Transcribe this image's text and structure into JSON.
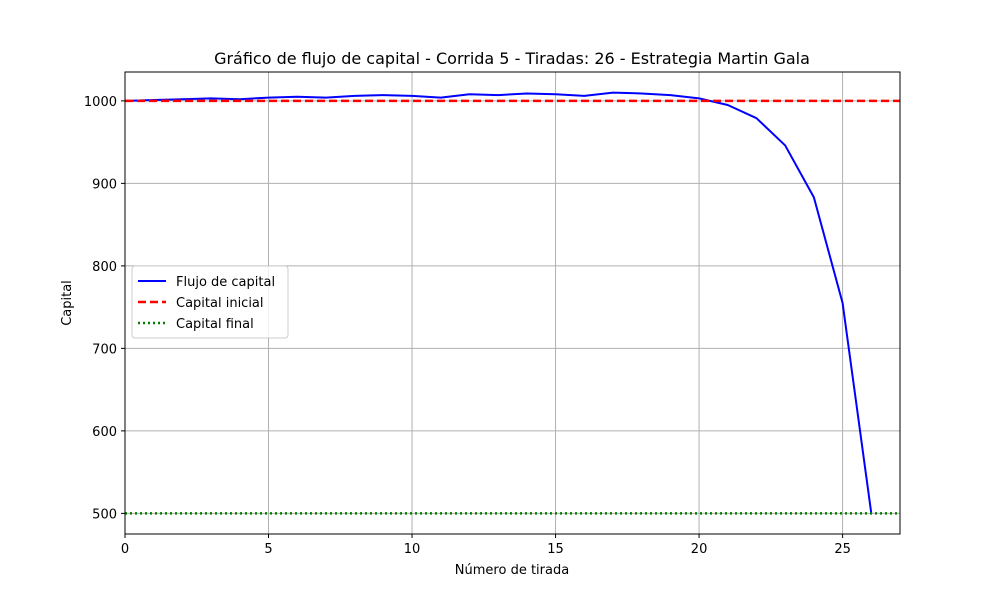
{
  "chart_data": {
    "type": "line",
    "title": "Gráfico de flujo de capital - Corrida 5 - Tiradas: 26 - Estrategia Martin Gala",
    "xlabel": "Número de tirada",
    "ylabel": "Capital",
    "xlim": [
      0,
      27
    ],
    "ylim": [
      475,
      1035
    ],
    "xticks": [
      0,
      5,
      10,
      15,
      20,
      25
    ],
    "yticks": [
      500,
      600,
      700,
      800,
      900,
      1000
    ],
    "grid": true,
    "legend_position": "center-left",
    "series": [
      {
        "name": "Flujo de capital",
        "style": "solid",
        "color": "#0000ff",
        "x": [
          0,
          1,
          2,
          3,
          4,
          5,
          6,
          7,
          8,
          9,
          10,
          11,
          12,
          13,
          14,
          15,
          16,
          17,
          18,
          19,
          20,
          21,
          22,
          23,
          24,
          25,
          26
        ],
        "y": [
          1000,
          1001,
          1002,
          1003,
          1002,
          1004,
          1005,
          1004,
          1006,
          1007,
          1006,
          1004,
          1008,
          1007,
          1009,
          1008,
          1006,
          1010,
          1009,
          1007,
          1003,
          995,
          979,
          946,
          883,
          755,
          500
        ]
      },
      {
        "name": "Capital inicial",
        "style": "dashed",
        "color": "#ff0000",
        "hline": 1000
      },
      {
        "name": "Capital final",
        "style": "dotted",
        "color": "#008000",
        "hline": 500
      }
    ]
  }
}
